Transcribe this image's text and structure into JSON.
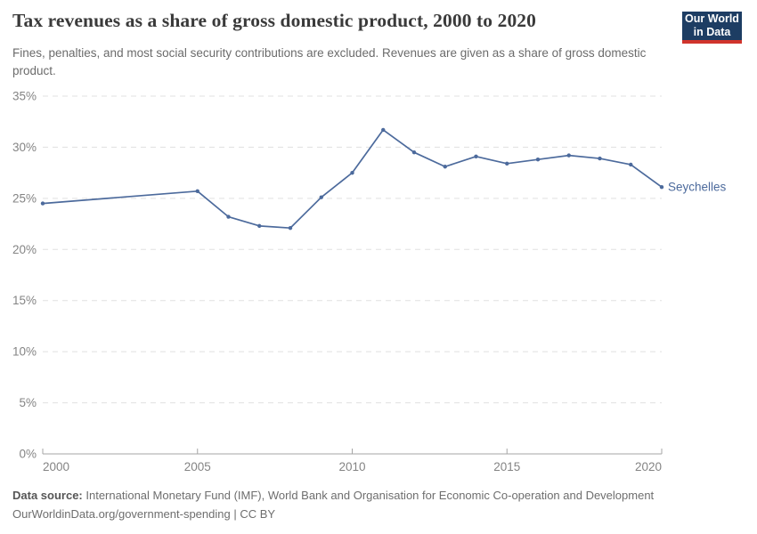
{
  "header": {
    "title": "Tax revenues as a share of gross domestic product, 2000 to 2020",
    "subtitle": "Fines, penalties, and most social security contributions are excluded. Revenues are given as a share of gross domestic product.",
    "logo": {
      "line1": "Our World",
      "line2": "in Data"
    }
  },
  "footer": {
    "source_label": "Data source:",
    "source_text": " International Monetary Fund (IMF), World Bank and Organisation for Economic Co-operation and Development",
    "license_line": "OurWorldinData.org/government-spending | CC BY"
  },
  "colors": {
    "line": "#4c6a9c",
    "series_label": "#4c6a9c",
    "gridline": "#e0e0e0",
    "axis": "#a5a5a5",
    "tick_label": "#848484",
    "logo_bg": "#1d3d63",
    "logo_stripe": "#d0342c"
  },
  "chart_data": {
    "type": "line",
    "title": "Tax revenues as a share of gross domestic product, 2000 to 2020",
    "xlabel": "",
    "ylabel": "",
    "ylim": [
      0,
      35
    ],
    "yticks": [
      0,
      5,
      10,
      15,
      20,
      25,
      30,
      35
    ],
    "ytick_format": "{v}%",
    "xticks": [
      2000,
      2005,
      2010,
      2015,
      2020
    ],
    "grid": "horizontal-dashed",
    "legend": "end-of-line-label",
    "series": [
      {
        "name": "Seychelles",
        "x": [
          2000,
          2005,
          2006,
          2007,
          2008,
          2009,
          2010,
          2011,
          2012,
          2013,
          2014,
          2015,
          2016,
          2017,
          2018,
          2019,
          2020
        ],
        "values": [
          24.5,
          25.7,
          23.2,
          22.3,
          22.1,
          25.1,
          27.5,
          31.7,
          29.5,
          28.1,
          29.1,
          28.4,
          28.8,
          29.2,
          28.9,
          28.3,
          26.1
        ]
      }
    ]
  }
}
